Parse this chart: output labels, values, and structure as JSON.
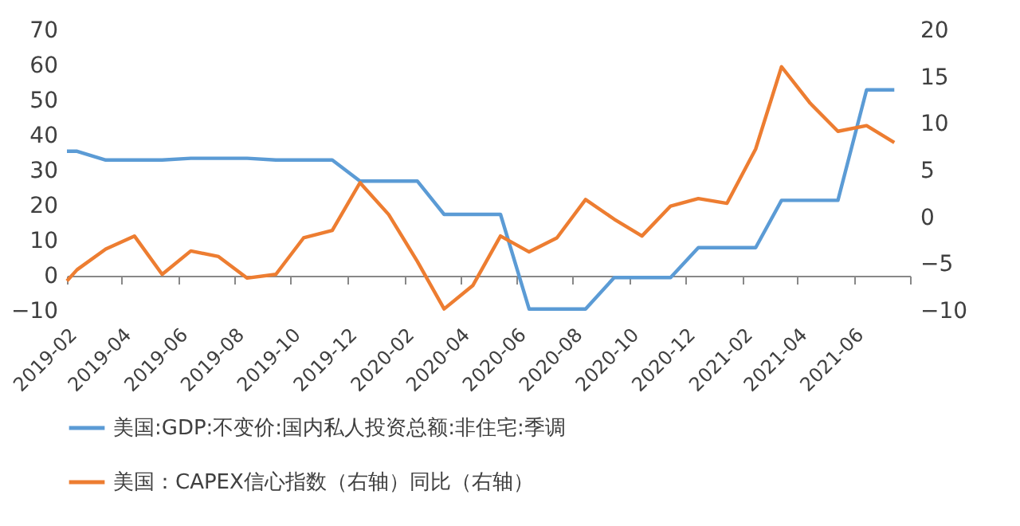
{
  "chart_data": {
    "type": "line",
    "x": [
      "2019-02-01",
      "2019-02-12",
      "2019-03-15",
      "2019-04-15",
      "2019-05-15",
      "2019-06-15",
      "2019-07-15",
      "2019-08-15",
      "2019-09-15",
      "2019-10-15",
      "2019-11-15",
      "2019-12-15",
      "2020-01-15",
      "2020-02-15",
      "2020-03-15",
      "2020-04-15",
      "2020-05-15",
      "2020-06-15",
      "2020-07-15",
      "2020-08-15",
      "2020-09-15",
      "2020-10-15",
      "2020-11-15",
      "2020-12-15",
      "2021-01-15",
      "2021-02-15",
      "2021-03-15",
      "2021-04-15",
      "2021-05-15",
      "2021-06-15",
      "2021-07-15"
    ],
    "series": [
      {
        "name": "美国:GDP:不变价:国内私人投资总额:非住宅:季调",
        "color": "#5b9bd5",
        "values": [
          35.5,
          35.5,
          33,
          33,
          33,
          33.5,
          33.5,
          33.5,
          33,
          33,
          33,
          27,
          27,
          27,
          17.5,
          17.5,
          17.5,
          -9.5,
          -9.5,
          -9.5,
          -0.5,
          -0.5,
          -0.5,
          8,
          8,
          8,
          21.5,
          21.5,
          21.5,
          53,
          53
        ]
      },
      {
        "name": "美国：CAPEX信心指数（右轴）同比（右轴）",
        "color": "#ed7d31",
        "axis": "y2",
        "values": [
          -6.8,
          -5.6,
          -3.4,
          -2.0,
          -6.1,
          -3.6,
          -4.2,
          -6.5,
          -6.1,
          -2.2,
          -1.4,
          3.7,
          0.3,
          -4.7,
          -9.8,
          -7.3,
          -2.0,
          -3.7,
          -2.2,
          1.9,
          -0.2,
          -2.0,
          1.2,
          2.0,
          1.5,
          7.3,
          16.1,
          12.2,
          9.2,
          9.8,
          8.0
        ]
      }
    ],
    "xlim": [
      "2019-02-01",
      "2021-08-01"
    ],
    "xticks": [
      "2019-02",
      "2019-04",
      "2019-06",
      "2019-08",
      "2019-10",
      "2019-12",
      "2020-02",
      "2020-04",
      "2020-06",
      "2020-08",
      "2020-10",
      "2020-12",
      "2021-02",
      "2021-04",
      "2021-06",
      {
        "value": "2021-08",
        "label": null
      }
    ],
    "ylim": [
      -10,
      70
    ],
    "yticks": [
      -10,
      0,
      10,
      20,
      30,
      40,
      50,
      60,
      70
    ],
    "y2lim": [
      -10,
      20
    ],
    "y2ticks": [
      -10,
      -5,
      0,
      5,
      10,
      15,
      20
    ],
    "grid": false,
    "legend": "bottom",
    "marker": "none",
    "line_style": "solid"
  }
}
